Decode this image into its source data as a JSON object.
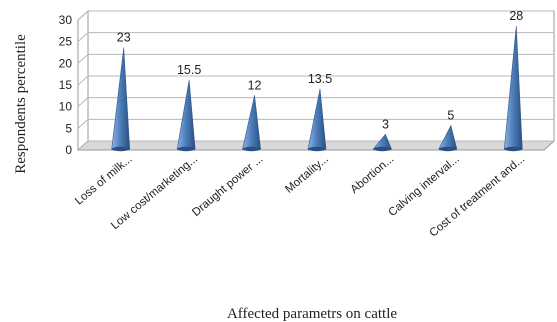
{
  "chart_data": {
    "type": "bar",
    "style": "3d-cone",
    "categories": [
      "Loss of milk...",
      "Low cost/marketing...",
      "Draught power ...",
      "Mortality...",
      "Abortion...",
      "Calving interval...",
      "Cost of treatment and..."
    ],
    "values": [
      23,
      15.5,
      12,
      13.5,
      3,
      5,
      28
    ],
    "data_labels": [
      "23",
      "15.5",
      "12",
      "13.5",
      "3",
      "5",
      "28"
    ],
    "xlabel": "Affected parametrs on cattle",
    "ylabel": "Respondents percentile",
    "ylim": [
      0,
      30
    ],
    "yticks": [
      "0",
      "5",
      "10",
      "15",
      "20",
      "25",
      "30"
    ],
    "grid": true,
    "legend": "none",
    "colors": {
      "bar_light": "#8fb4e3",
      "bar_mid": "#4f81bd",
      "bar_dark": "#2a4f82",
      "grid": "#b8b8b8",
      "wall": "#ffffff",
      "floor": "#d9d9d9"
    }
  }
}
